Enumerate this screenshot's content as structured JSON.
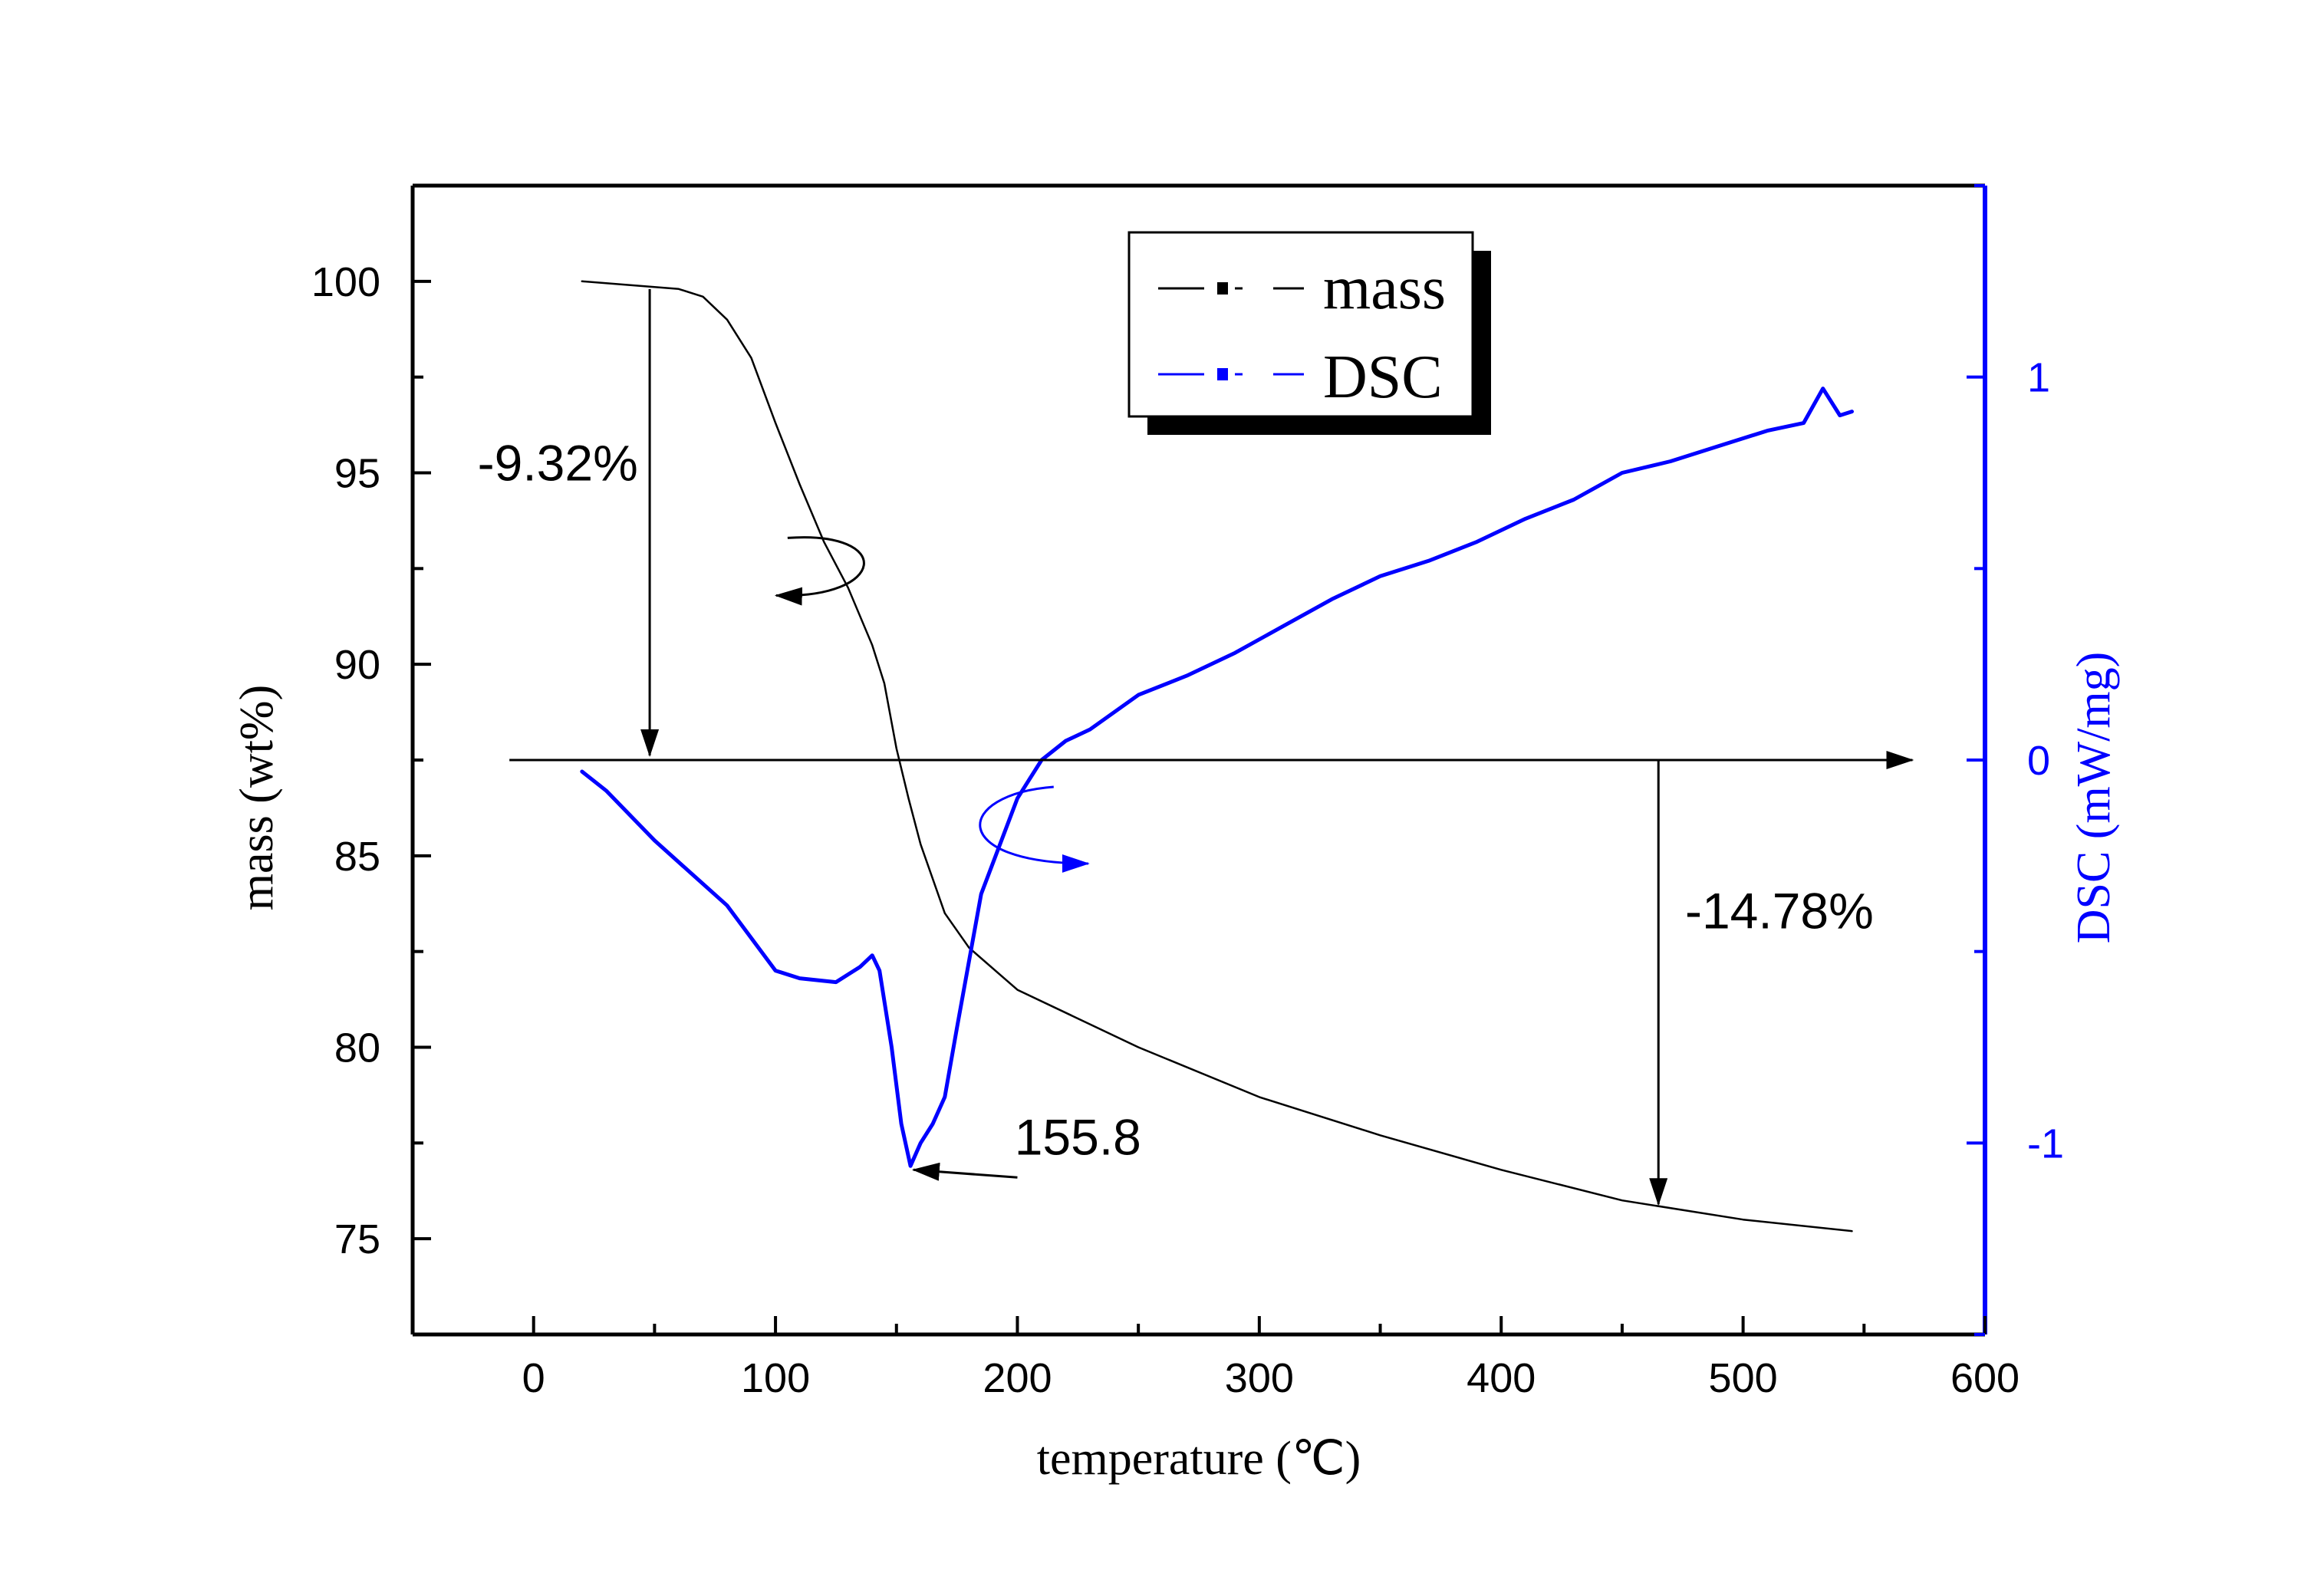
{
  "chart_data": {
    "type": "line",
    "x_axis": {
      "label": "temperature (℃)",
      "range": [
        -50,
        600
      ],
      "ticks": [
        0,
        100,
        200,
        300,
        400,
        500,
        600
      ]
    },
    "y_axis_left": {
      "label": "mass (wt%)",
      "range": [
        72.5,
        102.5
      ],
      "ticks": [
        75,
        80,
        85,
        90,
        95,
        100
      ]
    },
    "y_axis_right": {
      "label": "DSC (mW/mg)",
      "range": [
        -1.5,
        1.5
      ],
      "ticks": [
        -1,
        0,
        1
      ],
      "color": "#0000ff"
    },
    "legend": {
      "position": "top-center",
      "entries": [
        "mass",
        "DSC"
      ]
    },
    "series": [
      {
        "name": "mass",
        "axis": "left",
        "color": "#000000",
        "x": [
          20,
          40,
          60,
          70,
          80,
          90,
          100,
          110,
          120,
          130,
          140,
          145,
          150,
          155,
          160,
          170,
          180,
          200,
          250,
          300,
          350,
          400,
          450,
          500,
          545
        ],
        "y": [
          100,
          99.9,
          99.8,
          99.6,
          99.0,
          98.0,
          96.3,
          94.7,
          93.2,
          92.0,
          90.5,
          89.5,
          87.8,
          86.5,
          85.3,
          83.5,
          82.6,
          81.5,
          80.0,
          78.7,
          77.7,
          76.8,
          76.0,
          75.5,
          75.2
        ]
      },
      {
        "name": "DSC",
        "axis": "right",
        "color": "#0000ff",
        "x": [
          20,
          30,
          50,
          80,
          100,
          110,
          125,
          135,
          140,
          143,
          148,
          152,
          155.8,
          160,
          165,
          170,
          175,
          185,
          200,
          210,
          220,
          230,
          250,
          270,
          290,
          310,
          330,
          350,
          370,
          390,
          410,
          430,
          450,
          470,
          490,
          510,
          525,
          533,
          537,
          540,
          545
        ],
        "y": [
          -0.03,
          -0.08,
          -0.21,
          -0.38,
          -0.55,
          -0.57,
          -0.58,
          -0.54,
          -0.51,
          -0.55,
          -0.75,
          -0.95,
          -1.06,
          -1.0,
          -0.95,
          -0.88,
          -0.7,
          -0.35,
          -0.1,
          0.0,
          0.05,
          0.08,
          0.17,
          0.22,
          0.28,
          0.35,
          0.42,
          0.48,
          0.52,
          0.57,
          0.63,
          0.68,
          0.75,
          0.78,
          0.82,
          0.86,
          0.88,
          0.97,
          0.93,
          0.9,
          0.91
        ]
      }
    ],
    "annotations": [
      {
        "text": "-9.32%",
        "x": 10,
        "y": 94.8
      },
      {
        "text": "-14.78%",
        "x": 515,
        "y": 83.1
      },
      {
        "text": "155.8",
        "x": 225,
        "y": 77.2
      }
    ],
    "reference_line": {
      "x_start": -10,
      "x_end": 570,
      "y_right": 0
    }
  }
}
